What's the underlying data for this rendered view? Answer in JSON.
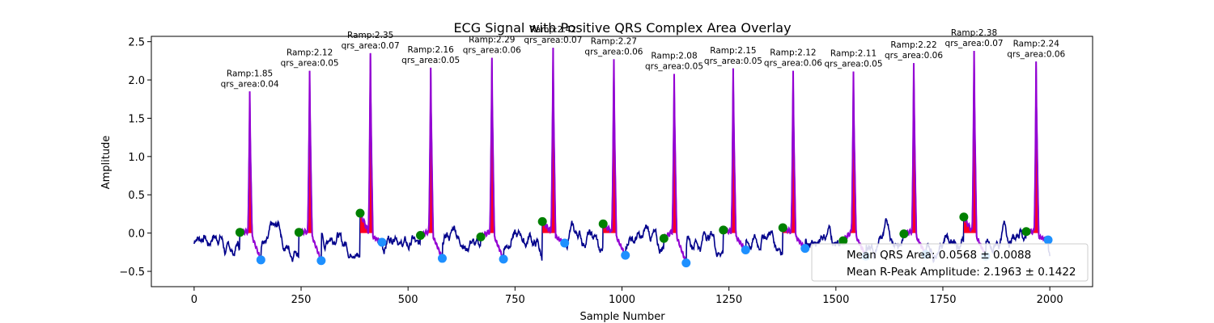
{
  "chart_data": {
    "type": "line",
    "title": "ECG Signal with Positive QRS Complex Area Overlay",
    "xlabel": "Sample Number",
    "ylabel": "Amplitude",
    "xlim": [
      -100,
      2100
    ],
    "ylim": [
      -0.7,
      2.57
    ],
    "x_ticks": [
      0,
      250,
      500,
      750,
      1000,
      1250,
      1500,
      1750,
      2000
    ],
    "x_tick_labels": [
      "0",
      "250",
      "500",
      "750",
      "1000",
      "1250",
      "1500",
      "1750",
      "2000"
    ],
    "y_ticks": [
      -0.5,
      0.0,
      0.5,
      1.0,
      1.5,
      2.0,
      2.5
    ],
    "y_tick_labels": [
      "−0.5",
      "0.0",
      "0.5",
      "1.0",
      "1.5",
      "2.0",
      "2.5"
    ],
    "signal_x_range": [
      0,
      2000
    ],
    "colors": {
      "signal": "#00008b",
      "qrs_segment": "#9400d3",
      "qrs_area_fill": "#ff0022",
      "onset_marker": "#008000",
      "offset_marker": "#1e90ff"
    },
    "r_peaks": [
      {
        "x": 130,
        "ramp": 1.85,
        "qrs_area": 0.04,
        "label": "Ramp:1.85\nqrs_area:0.04"
      },
      {
        "x": 270,
        "ramp": 2.12,
        "qrs_area": 0.05,
        "label": "Ramp:2.12\nqrs_area:0.05"
      },
      {
        "x": 412,
        "ramp": 2.35,
        "qrs_area": 0.07,
        "label": "Ramp:2.35\nqrs_area:0.07"
      },
      {
        "x": 553,
        "ramp": 2.16,
        "qrs_area": 0.05,
        "label": "Ramp:2.16\nqrs_area:0.05"
      },
      {
        "x": 696,
        "ramp": 2.29,
        "qrs_area": 0.06,
        "label": "Ramp:2.29\nqrs_area:0.06"
      },
      {
        "x": 839,
        "ramp": 2.42,
        "qrs_area": 0.07,
        "label": "Ramp:2.42\nqrs_area:0.07"
      },
      {
        "x": 981,
        "ramp": 2.27,
        "qrs_area": 0.06,
        "label": "Ramp:2.27\nqrs_area:0.06"
      },
      {
        "x": 1122,
        "ramp": 2.08,
        "qrs_area": 0.05,
        "label": "Ramp:2.08\nqrs_area:0.05"
      },
      {
        "x": 1260,
        "ramp": 2.15,
        "qrs_area": 0.05,
        "label": "Ramp:2.15\nqrs_area:0.05"
      },
      {
        "x": 1400,
        "ramp": 2.12,
        "qrs_area": 0.06,
        "label": "Ramp:2.12\nqrs_area:0.06"
      },
      {
        "x": 1541,
        "ramp": 2.11,
        "qrs_area": 0.05,
        "label": "Ramp:2.11\nqrs_area:0.05"
      },
      {
        "x": 1682,
        "ramp": 2.22,
        "qrs_area": 0.06,
        "label": "Ramp:2.22\nqrs_area:0.06"
      },
      {
        "x": 1823,
        "ramp": 2.38,
        "qrs_area": 0.07,
        "label": "Ramp:2.38\nqrs_area:0.07"
      },
      {
        "x": 1968,
        "ramp": 2.24,
        "qrs_area": 0.06,
        "label": "Ramp:2.24\nqrs_area:0.06"
      }
    ],
    "qrs_onsets": [
      {
        "x": 107,
        "y": 0.01
      },
      {
        "x": 245,
        "y": 0.01
      },
      {
        "x": 388,
        "y": 0.26
      },
      {
        "x": 529,
        "y": -0.03
      },
      {
        "x": 670,
        "y": -0.05
      },
      {
        "x": 814,
        "y": 0.15
      },
      {
        "x": 956,
        "y": 0.12
      },
      {
        "x": 1098,
        "y": -0.07
      },
      {
        "x": 1237,
        "y": 0.04
      },
      {
        "x": 1376,
        "y": 0.07
      },
      {
        "x": 1517,
        "y": -0.1
      },
      {
        "x": 1659,
        "y": -0.01
      },
      {
        "x": 1799,
        "y": 0.21
      },
      {
        "x": 1945,
        "y": 0.02
      }
    ],
    "qrs_offsets": [
      {
        "x": 156,
        "y": -0.35
      },
      {
        "x": 297,
        "y": -0.36
      },
      {
        "x": 439,
        "y": -0.12
      },
      {
        "x": 580,
        "y": -0.33
      },
      {
        "x": 723,
        "y": -0.34
      },
      {
        "x": 866,
        "y": -0.13
      },
      {
        "x": 1008,
        "y": -0.29
      },
      {
        "x": 1150,
        "y": -0.39
      },
      {
        "x": 1289,
        "y": -0.22
      },
      {
        "x": 1428,
        "y": -0.2
      },
      {
        "x": 1570,
        "y": -0.3
      },
      {
        "x": 1710,
        "y": -0.28
      },
      {
        "x": 1850,
        "y": -0.3
      },
      {
        "x": 1996,
        "y": -0.09
      }
    ],
    "legend": {
      "placement": "lower-right",
      "entries": [
        "Mean QRS Area: 0.0568 ± 0.0088",
        "Mean R-Peak Amplitude: 2.1963 ± 0.1422"
      ]
    }
  }
}
